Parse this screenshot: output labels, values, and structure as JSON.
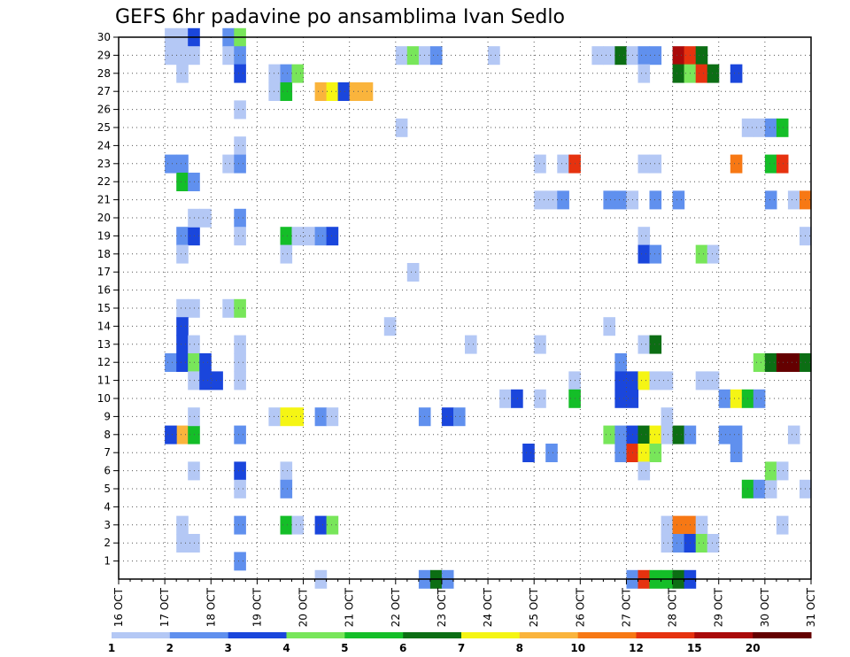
{
  "chart_data": {
    "type": "heatmap",
    "title": "GEFS 6hr padavine po ansamblima Ivan Sedlo",
    "xlabel": "",
    "ylabel": "",
    "x_ticks": [
      "16 OCT",
      "17 OCT",
      "18 OCT",
      "19 OCT",
      "20 OCT",
      "21 OCT",
      "22 OCT",
      "23 OCT",
      "24 OCT",
      "25 OCT",
      "26 OCT",
      "27 OCT",
      "28 OCT",
      "29 OCT",
      "30 OCT",
      "31 OCT"
    ],
    "y_ticks": [
      1,
      2,
      3,
      4,
      5,
      6,
      7,
      8,
      9,
      10,
      11,
      12,
      13,
      14,
      15,
      16,
      17,
      18,
      19,
      20,
      21,
      22,
      23,
      24,
      25,
      26,
      27,
      28,
      29,
      30
    ],
    "xlim_days": [
      16,
      31
    ],
    "ylim_members": [
      0,
      30
    ],
    "grid": true,
    "colorbar": {
      "labels": [
        "1",
        "2",
        "3",
        "4",
        "5",
        "6",
        "7",
        "8",
        "10",
        "12",
        "15",
        "20"
      ],
      "colors": [
        "#b4c8f5",
        "#6090ee",
        "#1a46dc",
        "#78e65a",
        "#14be28",
        "#0c6e14",
        "#f5f514",
        "#fab43c",
        "#f77814",
        "#e6320f",
        "#aa0a0a",
        "#640000"
      ]
    },
    "cells_format": "[date_OCT, member, precipitation_mm]",
    "cells": [
      [
        17.0,
        30,
        1.5
      ],
      [
        17.25,
        30,
        1.5
      ],
      [
        17.5,
        30,
        3
      ],
      [
        17.0,
        29,
        1.5
      ],
      [
        17.25,
        29,
        1.5
      ],
      [
        17.5,
        29,
        1.5
      ],
      [
        17.25,
        28,
        1.5
      ],
      [
        17.25,
        23,
        2
      ],
      [
        17.25,
        22,
        5
      ],
      [
        17.25,
        19,
        2
      ],
      [
        17.5,
        19,
        3
      ],
      [
        17.25,
        18,
        1.5
      ],
      [
        17.5,
        20,
        1.5
      ],
      [
        17.75,
        20,
        1.5
      ],
      [
        17.25,
        15,
        1.5
      ],
      [
        17.5,
        15,
        1.5
      ],
      [
        17.25,
        14,
        3
      ],
      [
        17.25,
        13,
        3
      ],
      [
        17.5,
        13,
        1.5
      ],
      [
        17.0,
        12,
        2
      ],
      [
        17.25,
        12,
        3
      ],
      [
        17.5,
        12,
        4.5
      ],
      [
        17.75,
        12,
        3
      ],
      [
        17.5,
        11,
        1.5
      ],
      [
        17.75,
        11,
        3
      ],
      [
        18.0,
        11,
        3
      ],
      [
        17.0,
        23,
        2
      ],
      [
        17.5,
        22,
        2
      ],
      [
        17.25,
        8,
        8
      ],
      [
        17.5,
        8,
        5
      ],
      [
        17.0,
        8,
        3
      ],
      [
        17.5,
        9,
        1.5
      ],
      [
        17.5,
        6,
        1.5
      ],
      [
        17.25,
        3,
        1.5
      ],
      [
        17.25,
        2,
        1.5
      ],
      [
        17.5,
        2,
        1.5
      ],
      [
        18.25,
        30,
        2
      ],
      [
        18.5,
        30,
        4.5
      ],
      [
        18.25,
        29,
        1.5
      ],
      [
        18.5,
        29,
        2
      ],
      [
        18.5,
        28,
        3
      ],
      [
        18.5,
        26,
        1.5
      ],
      [
        18.5,
        24,
        1.5
      ],
      [
        18.25,
        23,
        1.5
      ],
      [
        18.5,
        23,
        2
      ],
      [
        18.5,
        20,
        2
      ],
      [
        18.5,
        19,
        1.5
      ],
      [
        18.25,
        15,
        1.5
      ],
      [
        18.5,
        15,
        4.5
      ],
      [
        18.5,
        13,
        1.5
      ],
      [
        18.5,
        12,
        1.5
      ],
      [
        18.5,
        11,
        1.5
      ],
      [
        18.5,
        8,
        2
      ],
      [
        18.5,
        6,
        3
      ],
      [
        18.5,
        5,
        1.5
      ],
      [
        18.5,
        3,
        2
      ],
      [
        18.5,
        1,
        2
      ],
      [
        19.25,
        28,
        1.5
      ],
      [
        19.5,
        28,
        2
      ],
      [
        19.25,
        27,
        1.5
      ],
      [
        19.5,
        27,
        5
      ],
      [
        19.75,
        28,
        4.5
      ],
      [
        19.5,
        19,
        5
      ],
      [
        19.75,
        19,
        1.5
      ],
      [
        20.0,
        19,
        1.5
      ],
      [
        20.25,
        19,
        2
      ],
      [
        20.5,
        19,
        3
      ],
      [
        19.5,
        18,
        1.5
      ],
      [
        19.25,
        9,
        1.5
      ],
      [
        19.5,
        9,
        7.5
      ],
      [
        19.75,
        9,
        7.5
      ],
      [
        20.25,
        9,
        2
      ],
      [
        20.5,
        9,
        1.5
      ],
      [
        19.5,
        6,
        1.5
      ],
      [
        19.5,
        5,
        2
      ],
      [
        19.5,
        3,
        5
      ],
      [
        19.75,
        3,
        1.5
      ],
      [
        20.25,
        3,
        3
      ],
      [
        20.5,
        3,
        4.5
      ],
      [
        20.25,
        0,
        1.5
      ],
      [
        20.25,
        27,
        9
      ],
      [
        20.5,
        27,
        7.5
      ],
      [
        20.75,
        27,
        3
      ],
      [
        21.0,
        27,
        9
      ],
      [
        21.25,
        27,
        9
      ],
      [
        21.75,
        14,
        1.5
      ],
      [
        22.0,
        29,
        1.5
      ],
      [
        22.25,
        29,
        4.5
      ],
      [
        22.5,
        29,
        1.5
      ],
      [
        22.75,
        29,
        2
      ],
      [
        22.0,
        25,
        1.5
      ],
      [
        22.25,
        17,
        1.5
      ],
      [
        22.5,
        9,
        2
      ],
      [
        23.0,
        9,
        3
      ],
      [
        23.25,
        9,
        2
      ],
      [
        23.5,
        13,
        1.5
      ],
      [
        22.5,
        0,
        2
      ],
      [
        22.75,
        0,
        6
      ],
      [
        23.0,
        0,
        2
      ],
      [
        24.0,
        29,
        1.5
      ],
      [
        24.25,
        10,
        1.5
      ],
      [
        24.5,
        10,
        3
      ],
      [
        24.75,
        7,
        3
      ],
      [
        25.0,
        23,
        1.5
      ],
      [
        25.0,
        21,
        1.5
      ],
      [
        25.25,
        21,
        1.5
      ],
      [
        25.5,
        21,
        2
      ],
      [
        25.0,
        13,
        1.5
      ],
      [
        25.0,
        10,
        1.5
      ],
      [
        25.25,
        7,
        2
      ],
      [
        25.5,
        23,
        1.5
      ],
      [
        25.75,
        23,
        13
      ],
      [
        25.75,
        11,
        1.5
      ],
      [
        25.75,
        10,
        5
      ],
      [
        26.25,
        29,
        1.5
      ],
      [
        26.5,
        29,
        1.5
      ],
      [
        26.75,
        29,
        6
      ],
      [
        27.0,
        29,
        1.5
      ],
      [
        27.25,
        29,
        2
      ],
      [
        27.5,
        29,
        2
      ],
      [
        26.5,
        21,
        2
      ],
      [
        26.75,
        21,
        2
      ],
      [
        27.0,
        21,
        1.5
      ],
      [
        27.5,
        21,
        2
      ],
      [
        28.0,
        21,
        2
      ],
      [
        27.25,
        23,
        1.5
      ],
      [
        27.5,
        23,
        1.5
      ],
      [
        27.25,
        28,
        1.5
      ],
      [
        27.25,
        19,
        1.5
      ],
      [
        27.25,
        18,
        3
      ],
      [
        27.5,
        18,
        2
      ],
      [
        26.5,
        14,
        1.5
      ],
      [
        27.25,
        13,
        1.5
      ],
      [
        27.5,
        13,
        6
      ],
      [
        26.75,
        12,
        2
      ],
      [
        26.75,
        11,
        3
      ],
      [
        27.0,
        11,
        3
      ],
      [
        27.25,
        11,
        7.5
      ],
      [
        27.5,
        11,
        1.5
      ],
      [
        27.75,
        11,
        1.5
      ],
      [
        26.75,
        10,
        3
      ],
      [
        27.0,
        10,
        3
      ],
      [
        26.5,
        8,
        4.5
      ],
      [
        26.75,
        8,
        2
      ],
      [
        27.0,
        8,
        3
      ],
      [
        27.25,
        8,
        6
      ],
      [
        27.5,
        8,
        7.5
      ],
      [
        27.75,
        8,
        1.5
      ],
      [
        28.0,
        8,
        6
      ],
      [
        28.25,
        8,
        2
      ],
      [
        26.75,
        7,
        2
      ],
      [
        27.0,
        7,
        12
      ],
      [
        27.25,
        7,
        7.5
      ],
      [
        27.5,
        7,
        4.5
      ],
      [
        27.75,
        9,
        1.5
      ],
      [
        27.25,
        6,
        1.5
      ],
      [
        27.75,
        3,
        1.5
      ],
      [
        28.0,
        3,
        10
      ],
      [
        28.25,
        3,
        10
      ],
      [
        28.5,
        3,
        1.5
      ],
      [
        27.75,
        2,
        1.5
      ],
      [
        28.0,
        2,
        2
      ],
      [
        28.25,
        2,
        3
      ],
      [
        28.5,
        2,
        4.5
      ],
      [
        28.75,
        2,
        1.5
      ],
      [
        27.0,
        0,
        2
      ],
      [
        27.25,
        0,
        12
      ],
      [
        27.5,
        0,
        5
      ],
      [
        27.75,
        0,
        5
      ],
      [
        28.0,
        0,
        6
      ],
      [
        28.25,
        0,
        3
      ],
      [
        28.0,
        29,
        15
      ],
      [
        28.25,
        29,
        12
      ],
      [
        28.5,
        29,
        6
      ],
      [
        28.0,
        28,
        6
      ],
      [
        28.25,
        28,
        4.5
      ],
      [
        28.5,
        28,
        12
      ],
      [
        28.75,
        28,
        6
      ],
      [
        29.25,
        28,
        3
      ],
      [
        28.5,
        18,
        4.5
      ],
      [
        28.75,
        18,
        1.5
      ],
      [
        28.5,
        11,
        1.5
      ],
      [
        28.75,
        11,
        1.5
      ],
      [
        29.0,
        10,
        2
      ],
      [
        29.25,
        10,
        7.5
      ],
      [
        29.5,
        10,
        5
      ],
      [
        29.75,
        10,
        2
      ],
      [
        29.0,
        8,
        2
      ],
      [
        29.25,
        8,
        2
      ],
      [
        29.25,
        7,
        2
      ],
      [
        29.5,
        5,
        5
      ],
      [
        29.75,
        5,
        2
      ],
      [
        30.0,
        5,
        1.5
      ],
      [
        29.25,
        23,
        10
      ],
      [
        29.5,
        25,
        1.5
      ],
      [
        29.75,
        25,
        1.5
      ],
      [
        30.0,
        25,
        2
      ],
      [
        30.25,
        25,
        5
      ],
      [
        30.0,
        23,
        5
      ],
      [
        30.25,
        23,
        12
      ],
      [
        30.0,
        21,
        2
      ],
      [
        30.5,
        21,
        1.5
      ],
      [
        30.75,
        21,
        10
      ],
      [
        30.75,
        19,
        1.5
      ],
      [
        29.75,
        12,
        4.5
      ],
      [
        30.0,
        12,
        6
      ],
      [
        30.25,
        12,
        20
      ],
      [
        30.5,
        12,
        20
      ],
      [
        30.75,
        12,
        6
      ],
      [
        30.0,
        6,
        4.5
      ],
      [
        30.25,
        6,
        1.5
      ],
      [
        30.5,
        8,
        1.5
      ],
      [
        30.25,
        3,
        1.5
      ],
      [
        30.75,
        5,
        1.5
      ]
    ]
  }
}
